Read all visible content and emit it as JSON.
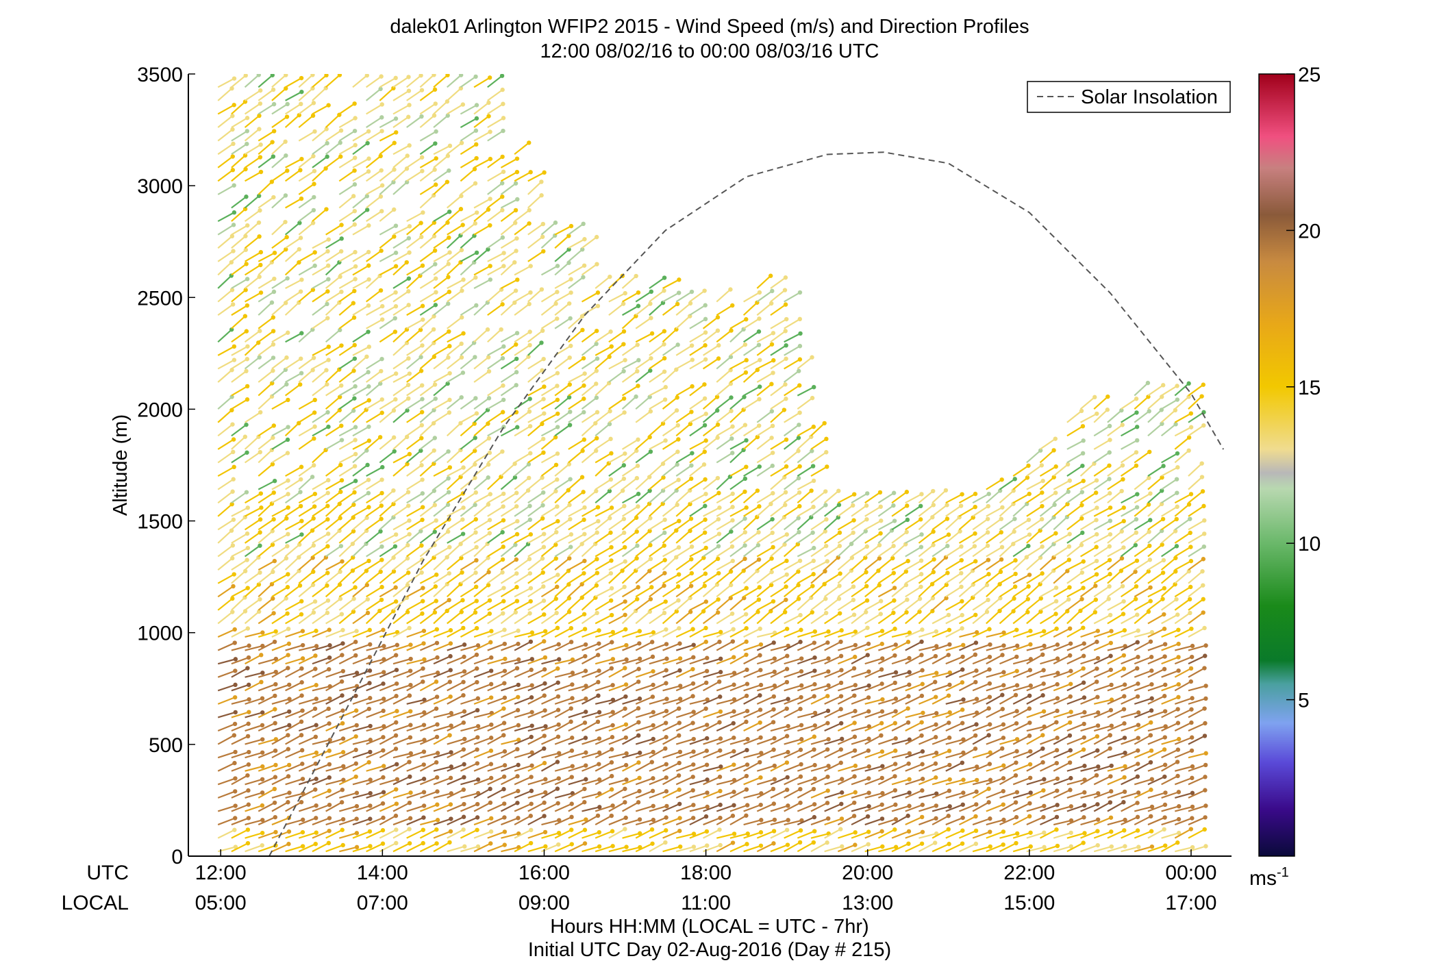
{
  "chart_data": {
    "type": "wind_barb_profile",
    "title_line1": "dalek01 Arlington WFIP2 2015 - Wind Speed (m/s) and Direction Profiles",
    "title_line2": "12:00 08/02/16 to 00:00 08/03/16  UTC",
    "ylabel": "Altitude (m)",
    "ylim": [
      0,
      3500
    ],
    "yticks": [
      "0",
      "500",
      "1000",
      "1500",
      "2000",
      "2500",
      "3000",
      "3500"
    ],
    "xlim_hours_utc": [
      11.6,
      24.5
    ],
    "utc_row_label": "UTC",
    "local_row_label": "LOCAL",
    "xticks_utc": [
      "12:00",
      "14:00",
      "16:00",
      "18:00",
      "20:00",
      "22:00",
      "00:00"
    ],
    "xticks_local": [
      "05:00",
      "07:00",
      "09:00",
      "11:00",
      "13:00",
      "15:00",
      "17:00"
    ],
    "xlabel_line1": "Hours HH:MM  (LOCAL = UTC - 7hr)",
    "xlabel_line2": "Initial UTC Day 02-Aug-2016 (Day # 215)",
    "legend": {
      "label": "Solar Insolation",
      "placement": "top-right",
      "style": "dashed",
      "color": "#666666"
    },
    "solar_insolation": {
      "x": [
        12.6,
        13.5,
        14.5,
        15.5,
        16.5,
        17.5,
        18.5,
        19.5,
        20.2,
        21.0,
        22.0,
        23.0,
        24.0,
        24.4
      ],
      "y": [
        0,
        620,
        1320,
        1920,
        2420,
        2800,
        3040,
        3140,
        3150,
        3100,
        2880,
        2520,
        2070,
        1820
      ]
    },
    "colorbar": {
      "ticks": [
        "5",
        "10",
        "15",
        "20",
        "25"
      ],
      "range": [
        0,
        25
      ],
      "unit": "ms",
      "unit_exponent": "-1"
    },
    "wind_field": {
      "profile_times_utc": "every 10 min, 12:00 to 00:00",
      "max_height_by_time": [
        [
          12.0,
          3500
        ],
        [
          13.3,
          3500
        ],
        [
          14.0,
          3500
        ],
        [
          15.3,
          3500
        ],
        [
          16.0,
          2900
        ],
        [
          17.0,
          2600
        ],
        [
          18.0,
          2500
        ],
        [
          19.0,
          2600
        ],
        [
          19.5,
          1600
        ],
        [
          20.5,
          1600
        ],
        [
          21.5,
          1650
        ],
        [
          22.5,
          2000
        ],
        [
          23.5,
          2100
        ],
        [
          24.2,
          2100
        ]
      ],
      "speed_bands_mps": [
        {
          "alt": [
            0,
            150
          ],
          "speed": 15
        },
        {
          "alt": [
            150,
            950
          ],
          "speed": 19
        },
        {
          "alt": [
            950,
            1300
          ],
          "speed": 15
        },
        {
          "alt": [
            1300,
            3500
          ],
          "speed": 14
        }
      ]
    },
    "grid": false
  }
}
